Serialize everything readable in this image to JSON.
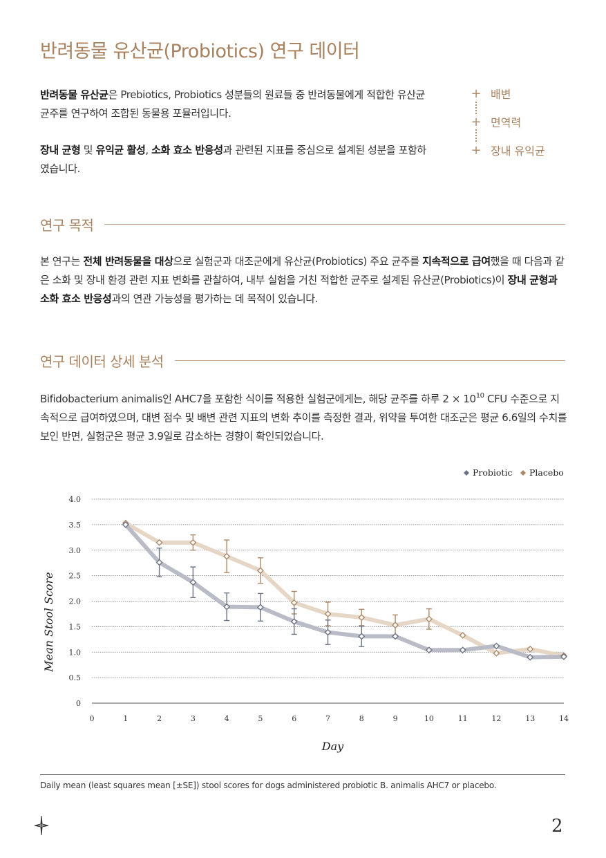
{
  "title": "반려동물 유산균(Probiotics) 연구 데이터",
  "intro": {
    "p1_b1": "반려동물 유산균",
    "p1_t1": "은 Prebiotics, Probiotics 성분들의 원료들 중 반려동물에게 적합한 유산균 균주를 연구하여 조합된 동물용 포뮬러입니다.",
    "p2_b1": "장내 균형",
    "p2_t1": " 및 ",
    "p2_b2": "유익균 활성",
    "p2_t2": ", ",
    "p2_b3": "소화 효소 반응성",
    "p2_t3": "과 관련된 지표를 중심으로 설계된 성분을 포함하였습니다."
  },
  "keywords": [
    "배변",
    "면역력",
    "장내 유익균"
  ],
  "section1": {
    "heading": "연구 목적",
    "t1": "본 연구는 ",
    "b1": "전체 반려동물을 대상",
    "t2": "으로 실험군과 대조군에게 유산균(Probiotics) 주요 균주를 ",
    "b2": "지속적으로 급여",
    "t3": "했을 때 다음과 같은 소화 및 장내 환경 관련 지표 변화를 관찰하여, 내부 실험을 거친 적합한 균주로 설계된 유산균(Probiotics)이 ",
    "b3": "장내 균형과 소화 효소 반응성",
    "t4": "과의 연관 가능성을 평가하는 데 목적이 있습니다."
  },
  "section2": {
    "heading": "연구 데이터 상세 분석",
    "t1": "Bifidobacterium animalis인 AHC7을 포함한 식이를 적용한 실험군에게는, 해당 균주를 하루 2 × 10",
    "sup": "10",
    "t2": " CFU 수준으로 지속적으로 급여하였으며, 대변 점수 및 배변 관련 지표의 변화 추이를 측정한 결과, 위약을 투여한 대조군은 평균 6.6일의 수치를 보인 반면, 실험군은 평균 3.9일로 감소하는 경향이 확인되었습니다."
  },
  "chart_data": {
    "type": "line",
    "xlabel": "Day",
    "ylabel": "Mean Stool Score",
    "x_ticks": [
      0,
      1,
      2,
      3,
      4,
      5,
      6,
      7,
      8,
      9,
      10,
      11,
      12,
      13,
      14
    ],
    "y_ticks": [
      "0",
      "0.5",
      "1.0",
      "1.5",
      "2.0",
      "2.5",
      "3.0",
      "3.5",
      "4.0"
    ],
    "xlim": [
      0,
      14
    ],
    "ylim": [
      0,
      4
    ],
    "legend_position": "top-right",
    "grid": true,
    "colors": {
      "probiotic": "#6b7384",
      "placebo": "#ad8866"
    },
    "series": [
      {
        "name": "Probiotic",
        "x": [
          1,
          2,
          3,
          4,
          5,
          6,
          7,
          8,
          9,
          10,
          11,
          12,
          13,
          14
        ],
        "y": [
          3.5,
          2.76,
          2.37,
          1.89,
          1.88,
          1.6,
          1.39,
          1.31,
          1.31,
          1.04,
          1.04,
          1.12,
          0.9,
          0.91
        ],
        "se": [
          0,
          0.28,
          0.3,
          0.27,
          0.27,
          0.25,
          0.24,
          0.2,
          0,
          0,
          0,
          0,
          0,
          0
        ]
      },
      {
        "name": "Placebo",
        "x": [
          1,
          2,
          3,
          4,
          5,
          6,
          7,
          8,
          9,
          10,
          11,
          12,
          13,
          14
        ],
        "y": [
          3.53,
          3.15,
          3.15,
          2.88,
          2.6,
          1.97,
          1.75,
          1.68,
          1.53,
          1.65,
          1.33,
          0.98,
          1.06,
          0.93
        ],
        "se": [
          0,
          0,
          0.15,
          0.32,
          0.25,
          0.22,
          0.23,
          0.16,
          0.2,
          0.2,
          0,
          0,
          0,
          0
        ]
      }
    ]
  },
  "caption": "Daily mean (least squares mean [±SE]) stool scores for dogs administered probiotic B. animalis AHC7 or placebo.",
  "page_number": "2"
}
